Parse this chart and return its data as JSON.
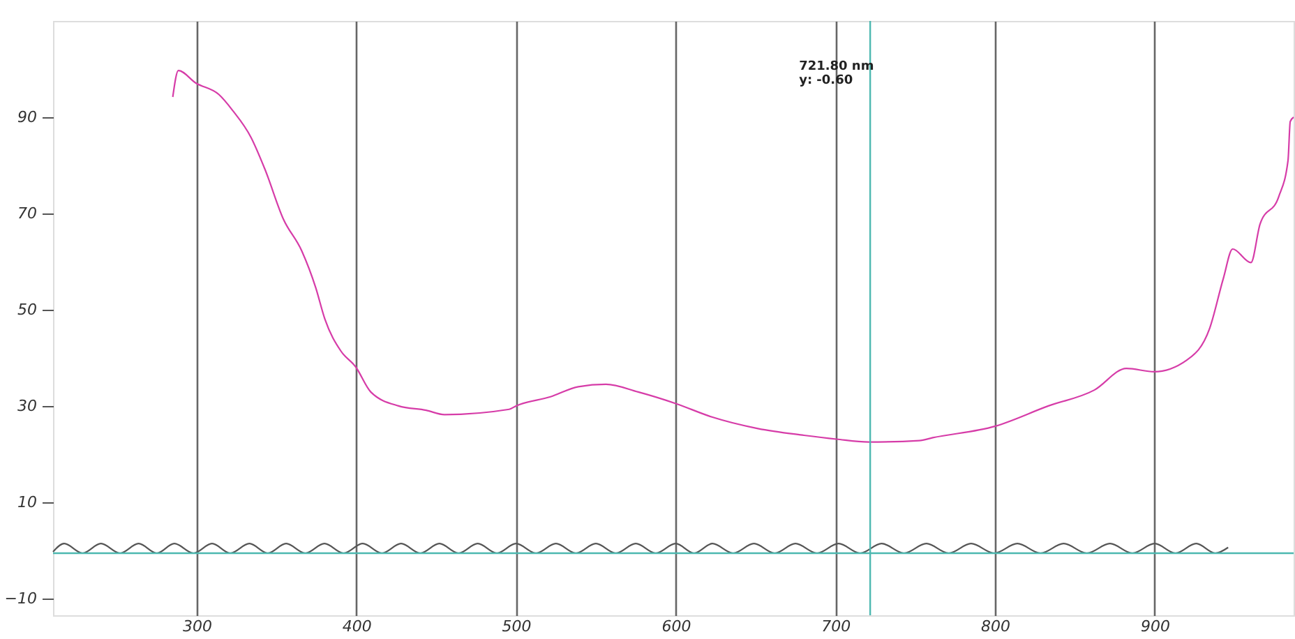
{
  "chart_data": {
    "type": "line",
    "xlim": [
      210,
      987
    ],
    "ylim": [
      -13.5,
      110
    ],
    "xticks": [
      300,
      400,
      500,
      600,
      700,
      800,
      900
    ],
    "yticks": [
      -10,
      10,
      30,
      50,
      70,
      90
    ],
    "grid": "x",
    "line_style": "solid",
    "marker": "none",
    "series": [
      {
        "color": "#d63ca8",
        "x": [
          285,
          288.5,
          299.4,
          313.9,
          322.5,
          334,
          342.7,
          354.3,
          365.8,
          374.5,
          380.3,
          390.3,
          399.6,
          409,
          426.4,
          443.7,
          455.2,
          495.7,
          500,
          521.6,
          539,
          556.3,
          576.5,
          600,
          622.7,
          651.5,
          680.3,
          700.6,
          720.8,
          752.5,
          761,
          800.2,
          833.4,
          862.2,
          882.3,
          899.7,
          920,
          934.4,
          943,
          948.8,
          960.3,
          966,
          977.7,
          983.5,
          984.9,
          987
        ],
        "values": [
          94.2,
          99.7,
          97.1,
          94.7,
          91.4,
          85.8,
          79.2,
          68.8,
          62.2,
          54.6,
          48,
          41.4,
          38.1,
          32.9,
          30,
          29.1,
          28.2,
          29.3,
          30,
          31.9,
          34,
          34.5,
          32.9,
          30.5,
          27.7,
          25.3,
          23.9,
          23.1,
          22.5,
          22.8,
          23.4,
          25.8,
          30,
          33.3,
          37.8,
          37.1,
          39.5,
          46.1,
          56.5,
          62.6,
          59.8,
          67.8,
          73.5,
          81,
          89.1,
          90
        ]
      },
      {
        "color": "#555555",
        "x": [
          210,
          217,
          228.5,
          240,
          252,
          263.6,
          275,
          286,
          298,
          309.6,
          321,
          333,
          344.5,
          356,
          368,
          380,
          392,
          404,
          416,
          428,
          440,
          452,
          464,
          476,
          488,
          500,
          512.5,
          525,
          537.5,
          550,
          562.5,
          575,
          587.5,
          600,
          611.5,
          623,
          636,
          649,
          662,
          675,
          688.5,
          702,
          715.5,
          729,
          743,
          757,
          771,
          785,
          799.5,
          814,
          828.5,
          843,
          857.5,
          872,
          886,
          900,
          913,
          926,
          938,
          946
        ],
        "values": [
          -0.3,
          1.4,
          -0.6,
          1.4,
          -0.6,
          1.4,
          -0.6,
          1.4,
          -0.6,
          1.4,
          -0.6,
          1.4,
          -0.6,
          1.4,
          -0.6,
          1.4,
          -0.6,
          1.4,
          -0.6,
          1.4,
          -0.6,
          1.4,
          -0.6,
          1.4,
          -0.6,
          1.4,
          -0.6,
          1.4,
          -0.6,
          1.4,
          -0.6,
          1.4,
          -0.6,
          1.4,
          -0.6,
          1.4,
          -0.6,
          1.4,
          -0.6,
          1.4,
          -0.6,
          1.4,
          -0.6,
          1.4,
          -0.6,
          1.4,
          -0.6,
          1.4,
          -0.6,
          1.4,
          -0.6,
          1.4,
          -0.6,
          1.4,
          -0.6,
          1.4,
          -0.6,
          1.4,
          -0.6,
          0.6
        ]
      }
    ],
    "ref_lines": [
      {
        "axis": "y",
        "value": -0.6,
        "color": "#4db8b0",
        "line_style": "solid"
      },
      {
        "axis": "x",
        "value": 721.8,
        "color": "#4db8b0",
        "line_style": "solid"
      }
    ],
    "annotations": [
      "721.80 nm",
      "y: -0.60"
    ]
  }
}
